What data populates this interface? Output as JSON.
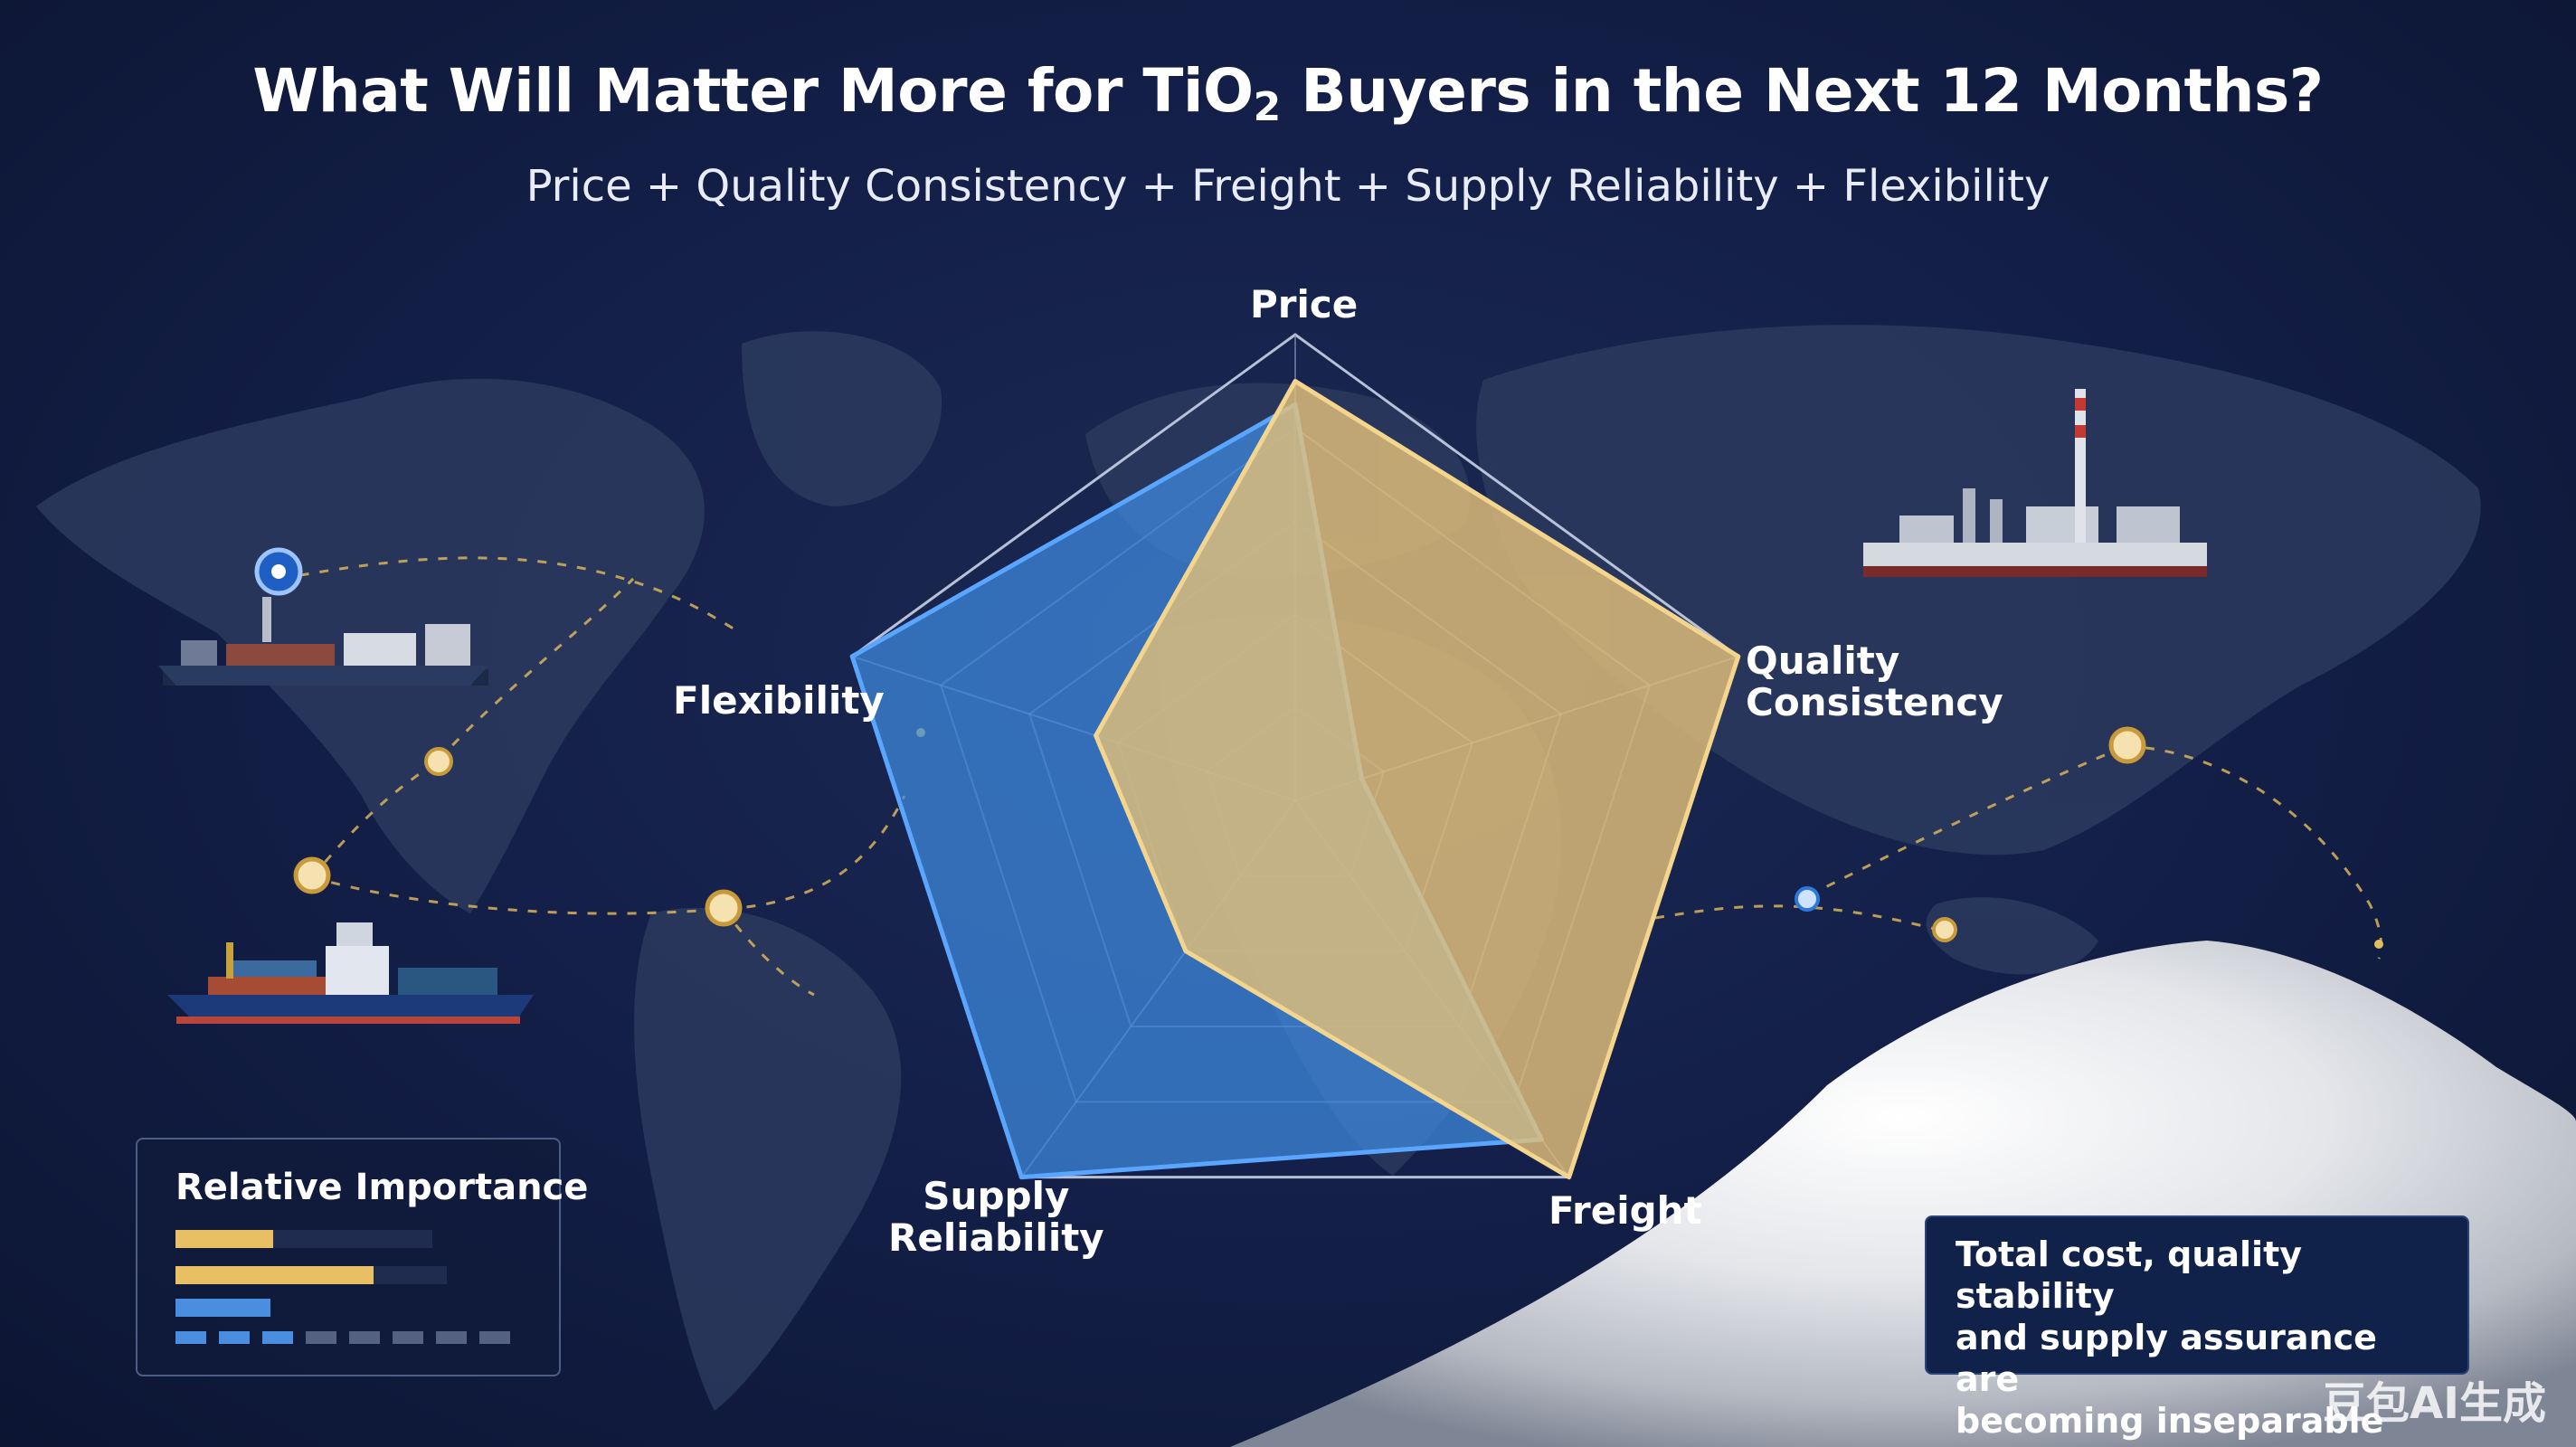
{
  "title_main": "What Will Matter More for TiO",
  "title_sub": "2",
  "title_rest": " Buyers in the Next 12 Months?",
  "subtitle": "Price + Quality Consistency + Freight + Supply Reliability + Flexibility",
  "chart_data": {
    "type": "radar",
    "axes": [
      "Price",
      "Quality Consistency",
      "Freight",
      "Supply Reliability",
      "Flexibility"
    ],
    "axis_label_lines": [
      [
        "Price"
      ],
      [
        "Quality",
        "Consistency"
      ],
      [
        "Freight"
      ],
      [
        "Supply",
        "Reliability"
      ],
      [
        "Flexibility"
      ]
    ],
    "range": [
      0,
      1
    ],
    "rings": 5,
    "series": [
      {
        "color": "#3f8ae0",
        "values": [
          0.85,
          0.15,
          0.9,
          1.0,
          1.0
        ]
      },
      {
        "color": "#e2bf7a",
        "values": [
          0.9,
          1.0,
          1.0,
          0.4,
          0.45
        ]
      }
    ]
  },
  "legend": {
    "title": "Relative Importance",
    "bars": [
      {
        "color": "#e8bf63",
        "value": 0.38
      },
      {
        "color": "#e8bf63",
        "value": 0.73
      },
      {
        "color": "#4a8ee0",
        "value": 0.35
      }
    ],
    "dashes": {
      "total": 8,
      "highlighted": 3,
      "highlight_color": "#4a8ee0",
      "base_color": "#546280"
    }
  },
  "callout": {
    "line1": "Total cost, quality stability",
    "line2": "and supply assurance are",
    "line3": "becoming inseparable"
  },
  "watermark": "豆包AI生成",
  "icons": [
    "world-map",
    "cargo-ship-icon",
    "container-ship-icon",
    "factory-icon",
    "route-pin-icon",
    "powder-pile-image"
  ]
}
